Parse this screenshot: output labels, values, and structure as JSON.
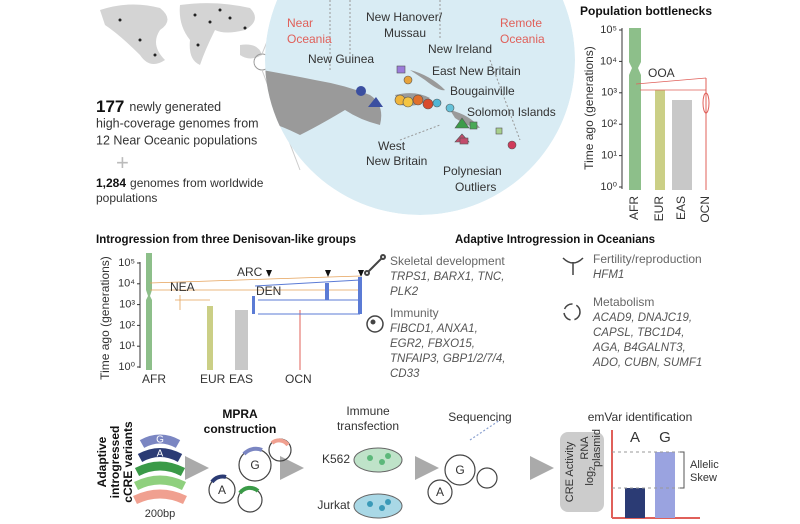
{
  "genomes": {
    "count_new": "177",
    "text_new": [
      "newly generated",
      "high-coverage genomes from",
      "12 Near Oceanic populations"
    ],
    "plus": "+",
    "count_world": "1,284",
    "text_world": [
      "genomes from worldwide",
      "populations"
    ]
  },
  "map": {
    "near": [
      "Near",
      "Oceania"
    ],
    "remote": [
      "Remote",
      "Oceania"
    ],
    "labels": [
      [
        "New Hanover/",
        "Mussau"
      ],
      [
        "New Guinea"
      ],
      [
        "New Ireland"
      ],
      [
        "East New Britain"
      ],
      [
        "Bougainville"
      ],
      [
        "Solomon Islands"
      ],
      [
        "West",
        "New Britain"
      ],
      [
        "Polynesian",
        "Outliers"
      ]
    ]
  },
  "bottlenecks": {
    "title": "Population bottlenecks",
    "y_label": "Time ago (generations)",
    "yticks": [
      "10⁵",
      "10⁴",
      "10³",
      "10²",
      "10¹",
      "10⁰"
    ],
    "annotation": "OOA",
    "populations": [
      "AFR",
      "EUR",
      "EAS",
      "OCN"
    ]
  },
  "introgression": {
    "title": "Introgression from three Denisovan-like groups",
    "y_label": "Time ago (generations)",
    "yticks": [
      "10⁵",
      "10⁴",
      "10³",
      "10²",
      "10¹",
      "10⁰"
    ],
    "groups": [
      "NEA",
      "ARC",
      "DEN"
    ],
    "populations": [
      "AFR",
      "EUR",
      "EAS",
      "OCN"
    ]
  },
  "adaptive": {
    "title": "Adaptive Introgression in Oceanians",
    "categories": [
      {
        "name": "Skeletal development",
        "genes": [
          "TRPS1, BARX1, TNC,",
          "PLK2"
        ]
      },
      {
        "name": "Immunity",
        "genes": [
          "FIBCD1, ANXA1,",
          "EGR2, FBXO15,",
          "TNFAIP3, GBP1/2/7/4,",
          "CD33"
        ]
      },
      {
        "name": "Fertility/reproduction",
        "genes": [
          "HFM1"
        ]
      },
      {
        "name": "Metabolism",
        "genes": [
          "ACAD9, DNAJC19,",
          "CAPSL, TBC1D4,",
          "AGA, B4GALNT3,",
          "ADO, CUBN, SUMF1"
        ]
      }
    ]
  },
  "workflow": {
    "side_label": [
      "Adaptive",
      "introgressed",
      "cCRE variants"
    ],
    "alleles": [
      "G",
      "A"
    ],
    "length": "200bp",
    "mpra": {
      "title": [
        "MPRA",
        "construction"
      ],
      "alleles": [
        "G",
        "A"
      ]
    },
    "transfection": {
      "title": [
        "Immune",
        "transfection"
      ],
      "cells": [
        "K562",
        "Jurkat"
      ]
    },
    "sequencing": {
      "title": "Sequencing",
      "alleles": [
        "G",
        "A"
      ]
    },
    "emvar": {
      "title": "emVar identification",
      "axis": [
        "CRE Activity",
        "log",
        "2",
        "RNA",
        "plasmid"
      ],
      "alleles": [
        "A",
        "G"
      ],
      "skew": [
        "Allelic",
        "Skew"
      ]
    }
  }
}
